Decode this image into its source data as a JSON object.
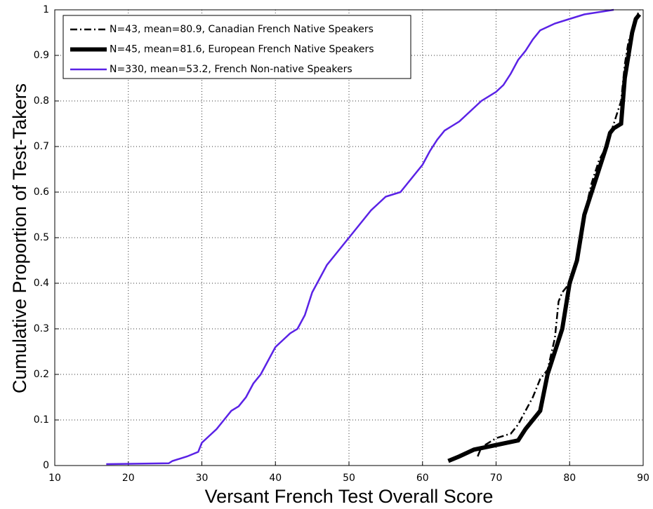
{
  "chart_data": {
    "type": "line",
    "xlabel": "Versant French Test Overall Score",
    "ylabel": "Cumulative Proportion of Test-Takers",
    "xlim": [
      10,
      90
    ],
    "ylim": [
      0,
      1
    ],
    "xticks": [
      10,
      20,
      30,
      40,
      50,
      60,
      70,
      80,
      90
    ],
    "yticks": [
      0,
      0.1,
      0.2,
      0.3,
      0.4,
      0.5,
      0.6,
      0.7,
      0.8,
      0.9,
      1
    ],
    "grid": true,
    "legend": "upper left",
    "series": [
      {
        "name": "N=43, mean=80.9, Canadian French Native Speakers",
        "color": "#000000",
        "linestyle": "dashdot",
        "linewidth": 2.5,
        "x": [
          67.5,
          68,
          70,
          72,
          73,
          74,
          75,
          76,
          77,
          78,
          78.5,
          79,
          80,
          81,
          82,
          83,
          84,
          85,
          86,
          87,
          87.5,
          88,
          89,
          89.5
        ],
        "values": [
          0.02,
          0.04,
          0.06,
          0.07,
          0.09,
          0.12,
          0.15,
          0.19,
          0.21,
          0.28,
          0.36,
          0.38,
          0.4,
          0.45,
          0.55,
          0.62,
          0.67,
          0.7,
          0.75,
          0.8,
          0.88,
          0.93,
          0.98,
          1
        ]
      },
      {
        "name": "N=45, mean=81.6, European French Native Speakers",
        "color": "#000000",
        "linestyle": "solid",
        "linewidth": 6,
        "x": [
          63.5,
          65,
          67,
          70,
          73,
          74,
          75,
          76,
          76.5,
          77,
          78,
          79,
          79.5,
          80,
          81,
          81.5,
          82,
          83,
          84,
          85,
          85.5,
          86,
          87,
          87.5,
          88,
          88.5,
          89,
          89.5
        ],
        "values": [
          0.01,
          0.02,
          0.035,
          0.045,
          0.055,
          0.08,
          0.1,
          0.12,
          0.16,
          0.2,
          0.25,
          0.3,
          0.35,
          0.4,
          0.45,
          0.5,
          0.55,
          0.6,
          0.65,
          0.7,
          0.73,
          0.74,
          0.75,
          0.85,
          0.9,
          0.95,
          0.98,
          0.99
        ]
      },
      {
        "name": "N=330, mean=53.2, French Non-native Speakers",
        "color": "#5a22e6",
        "linestyle": "solid",
        "linewidth": 2.5,
        "x": [
          17,
          25.5,
          26,
          28,
          29.5,
          30,
          31,
          32,
          33,
          34,
          35,
          36,
          37,
          38,
          39,
          40,
          41,
          42,
          43,
          44,
          45,
          46,
          47,
          48,
          49,
          50,
          51,
          52,
          53,
          54,
          55,
          57,
          58,
          59,
          60,
          61,
          62,
          63,
          64,
          65,
          66,
          67,
          68,
          70,
          71,
          72,
          73,
          74,
          75,
          76,
          78,
          80,
          82,
          84,
          86
        ],
        "values": [
          0.003,
          0.005,
          0.01,
          0.02,
          0.03,
          0.05,
          0.065,
          0.08,
          0.1,
          0.12,
          0.13,
          0.15,
          0.18,
          0.2,
          0.23,
          0.26,
          0.275,
          0.29,
          0.3,
          0.33,
          0.38,
          0.41,
          0.44,
          0.46,
          0.48,
          0.5,
          0.52,
          0.54,
          0.56,
          0.575,
          0.59,
          0.6,
          0.62,
          0.64,
          0.66,
          0.69,
          0.715,
          0.735,
          0.745,
          0.755,
          0.77,
          0.785,
          0.8,
          0.82,
          0.835,
          0.86,
          0.89,
          0.91,
          0.935,
          0.955,
          0.97,
          0.98,
          0.99,
          0.995,
          1
        ]
      }
    ]
  }
}
